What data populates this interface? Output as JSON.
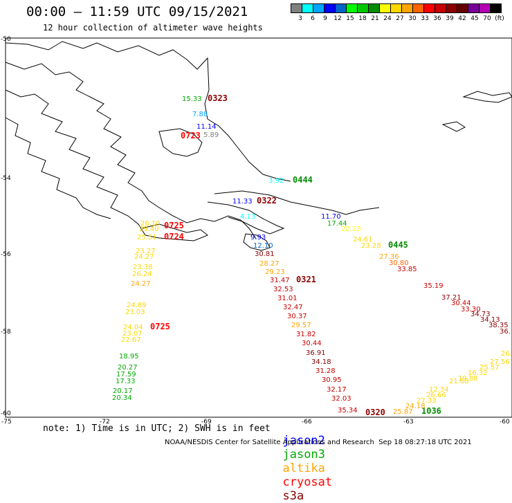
{
  "header": {
    "title": "00:00 – 11:59 UTC 09/15/2021",
    "subtitle": "12 hour collection of altimeter wave heights"
  },
  "colorbar": {
    "unit": "(ft)",
    "colors": [
      "#808080",
      "#00ffff",
      "#00a5ff",
      "#0000ff",
      "#0064c8",
      "#00ff00",
      "#00c800",
      "#008c00",
      "#ffff00",
      "#ffd700",
      "#ffa500",
      "#ff6400",
      "#ff0000",
      "#c80000",
      "#8c0000",
      "#640000",
      "#780096",
      "#b400b4",
      "#000000"
    ],
    "labels": [
      "3",
      "6",
      "9",
      "12",
      "15",
      "18",
      "21",
      "24",
      "27",
      "30",
      "33",
      "36",
      "39",
      "42",
      "45",
      "70",
      "(ft)"
    ]
  },
  "axes": {
    "lon_labels": [
      "-75",
      "-72",
      "-69",
      "-66",
      "-63",
      "-60"
    ],
    "lat_labels": [
      "-50",
      "-54",
      "-56",
      "-58",
      "-60"
    ]
  },
  "observations": {
    "satellite_colors": {
      "jason2": "#0000ff",
      "jason3": "#00aa00",
      "altika": "#ffa500",
      "cryosat": "#ff0000",
      "s3a": "#8c0000"
    },
    "pass_times": [
      "0323",
      "0723",
      "0444",
      "0322",
      "0445",
      "0321",
      "0725",
      "0724",
      "0725",
      "0320",
      "1036"
    ],
    "values": [
      "15.33",
      "7.88",
      "11.14",
      "5.89",
      "3.92",
      "11.33",
      "4.13",
      "11.70",
      "17.44",
      "22.28",
      "24.61",
      "23.28",
      "27.36",
      "30.80",
      "33.85",
      "35.19",
      "37.21",
      "30.44",
      "33.30",
      "34.73",
      "34.13",
      "38.35",
      "36.",
      "26.",
      "27.56",
      "25.57",
      "21.68",
      "19.88",
      "16.32",
      "12.34",
      "26.66",
      "27.33",
      "24.18",
      "25.87",
      "30.81",
      "28.27",
      "29.23",
      "31.47",
      "32.53",
      "31.01",
      "32.47",
      "30.37",
      "29.57",
      "31.82",
      "30.44",
      "36.91",
      "34.18",
      "31.28",
      "30.95",
      "32.17",
      "32.03",
      "35.34",
      "23.27",
      "24.27",
      "23.38",
      "26.24",
      "24.27",
      "24.89",
      "23.03",
      "24.04",
      "23.07",
      "22.67",
      "18.95",
      "20.27",
      "17.59",
      "17.33",
      "20.17",
      "20.34",
      "29.40",
      "25.51",
      "26.10",
      "9.93",
      "12.10"
    ]
  },
  "footer": {
    "note": "note: 1) Time is in UTC; 2) SWH is in feet",
    "legend": [
      "jason2",
      "jason3",
      "altika",
      "cryosat",
      "s3a"
    ],
    "credit": "NOAA/NESDIS Center for Satellite Applications and Research  Sep 18 08:27:18 UTC 2021"
  }
}
